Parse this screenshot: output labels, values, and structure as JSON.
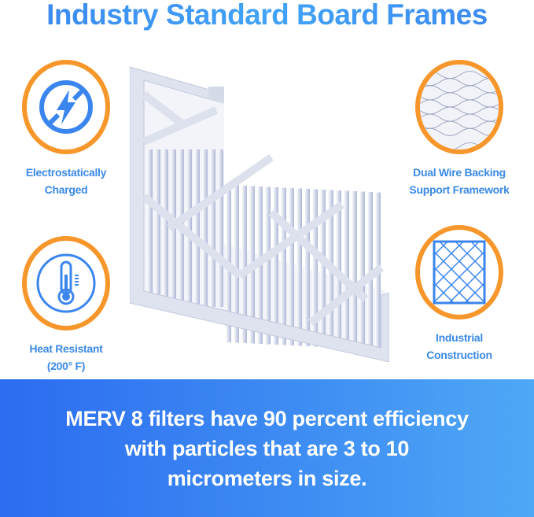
{
  "title": "Industry Standard Board Frames",
  "features": [
    {
      "label_line1": "Electrostatically",
      "label_line2": "Charged",
      "icon": "lightning-bolt-icon"
    },
    {
      "label_line1": "Heat Resistant",
      "label_line2": "(200° F)",
      "icon": "thermometer-icon"
    },
    {
      "label_line1": "Dual Wire Backing",
      "label_line2": "Support Framework",
      "icon": "wire-mesh-icon"
    },
    {
      "label_line1": "Industrial",
      "label_line2": "Construction",
      "icon": "grid-frame-icon"
    }
  ],
  "banner": {
    "text": "MERV 8 filters have 90 percent efficiency with particles that are 3 to 10 micrometers in size."
  },
  "colors": {
    "accent_blue": "#3b8ae6",
    "ring_orange": "#f7962a",
    "banner_start": "#2c6cf0",
    "banner_end": "#4fa8f6"
  }
}
